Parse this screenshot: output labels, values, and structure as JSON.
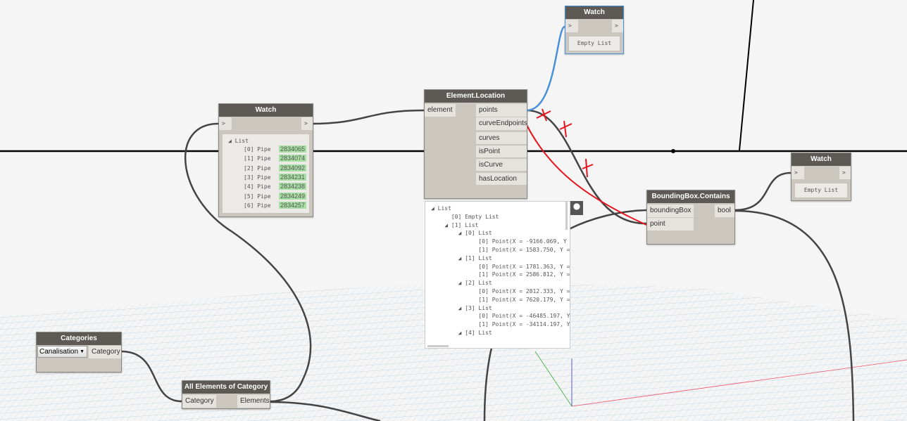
{
  "watch_top": {
    "title": "Watch",
    "in": ">",
    "out": ">",
    "value": "Empty List"
  },
  "watch_main": {
    "title": "Watch",
    "in": ">",
    "out": ">",
    "root": "List",
    "items": [
      {
        "index": "[0] Pipe",
        "id": "2834065"
      },
      {
        "index": "[1] Pipe",
        "id": "2834074"
      },
      {
        "index": "[2] Pipe",
        "id": "2834092"
      },
      {
        "index": "[3] Pipe",
        "id": "2834231"
      },
      {
        "index": "[4] Pipe",
        "id": "2834238"
      },
      {
        "index": "[5] Pipe",
        "id": "2834249"
      },
      {
        "index": "[6] Pipe",
        "id": "2834257"
      }
    ]
  },
  "element_location": {
    "title": "Element.Location",
    "input": "element",
    "outputs": [
      "points",
      "curveEndpoints",
      "curves",
      "isPoint",
      "isCurve",
      "hasLocation"
    ]
  },
  "preview": {
    "lines": [
      "◢ List",
      "      [0] Empty List",
      "    ◢ [1] List",
      "        ◢ [0] List",
      "              [0] Point(X = -9166.069, Y =",
      "              [1] Point(X = 1583.750, Y =",
      "        ◢ [1] List",
      "              [0] Point(X = 1781.363, Y =",
      "              [1] Point(X = 2586.812, Y =",
      "        ◢ [2] List",
      "              [0] Point(X = 2812.333, Y =",
      "              [1] Point(X = 7620.179, Y =",
      "        ◢ [3] List",
      "              [0] Point(X = -46485.197, Y",
      "              [1] Point(X = -34114.197, Y",
      "        ◢ [4] List"
    ]
  },
  "watch_right": {
    "title": "Watch",
    "in": ">",
    "out": ">",
    "value": "Empty List"
  },
  "bbox_contains": {
    "title": "BoundingBox.Contains",
    "inputs": [
      "boundingBox",
      "point"
    ],
    "output": "bool"
  },
  "categories": {
    "title": "Categories",
    "selected": "Canalisation",
    "output": "Category"
  },
  "all_elements": {
    "title": "All Elements of Category",
    "input": "Category",
    "output": "Elements"
  },
  "colors": {
    "wire": "#444444",
    "wire_selected": "#4a90d9",
    "annotation": "#e8141c",
    "header": "#5d5a56",
    "node": "#cbc7bf",
    "id_badge": "#a8e0a4"
  }
}
